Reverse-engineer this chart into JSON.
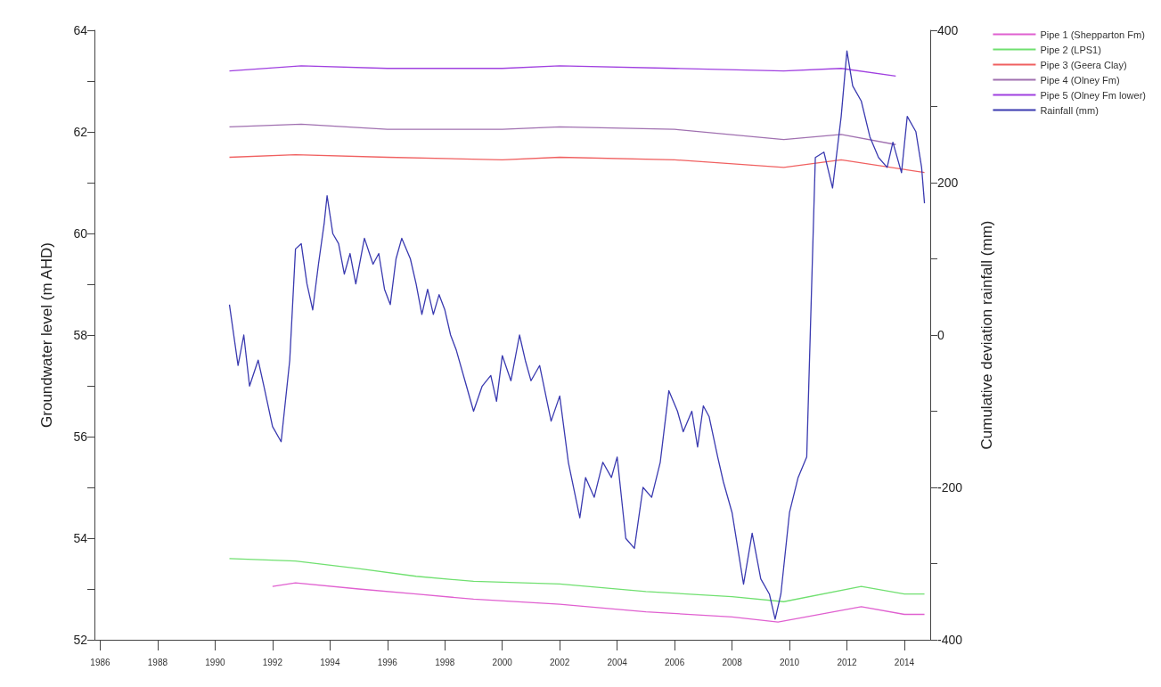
{
  "chart_data": {
    "type": "line",
    "xlabel": null,
    "ylabel": "Groundwater level (m AHD)",
    "y2label": "Cumulative deviation rainfall (mm)",
    "xlim": [
      1985.8,
      2014.9
    ],
    "xticks": [
      1986,
      1988,
      1990,
      1992,
      1994,
      1996,
      1998,
      2000,
      2002,
      2004,
      2006,
      2008,
      2010,
      2012,
      2014
    ],
    "ylim": [
      52,
      64
    ],
    "yticks": [
      52,
      {
        "value": 53,
        "label": null
      },
      54,
      {
        "value": 55,
        "label": null
      },
      56,
      {
        "value": 57,
        "label": null
      },
      58,
      {
        "value": 59,
        "label": null
      },
      60,
      {
        "value": 61,
        "label": null
      },
      62,
      {
        "value": 63,
        "label": null
      },
      64
    ],
    "y2lim": [
      -400,
      400
    ],
    "y2ticks": [
      -400,
      {
        "value": -300,
        "label": null
      },
      -200,
      {
        "value": -100,
        "label": null
      },
      0,
      {
        "value": 100,
        "label": null
      },
      200,
      {
        "value": 300,
        "label": null
      },
      400
    ],
    "grid": false,
    "legend": "top right",
    "marker": "none",
    "line_style": "solid",
    "series": [
      {
        "name": "Pipe 1 (Shepparton Fm)",
        "color": "#e060d0",
        "x": [
          1992,
          1992.8,
          1995,
          1997,
          1999,
          2002,
          2005,
          2008,
          2009.6,
          2012.5,
          2014,
          2014.7
        ],
        "values": [
          53.05,
          53.12,
          53.0,
          52.9,
          52.8,
          52.7,
          52.55,
          52.45,
          52.35,
          52.65,
          52.5,
          52.5
        ]
      },
      {
        "name": "Pipe 2 (LPS1)",
        "color": "#70e070",
        "x": [
          1990.5,
          1992.8,
          1995,
          1997,
          1999,
          2002,
          2005,
          2008,
          2009.8,
          2012.5,
          2014,
          2014.7
        ],
        "values": [
          53.6,
          53.55,
          53.4,
          53.25,
          53.15,
          53.1,
          52.95,
          52.85,
          52.75,
          53.05,
          52.9,
          52.9
        ]
      },
      {
        "name": "Pipe 3 (Geera Clay)",
        "color": "#f06060",
        "x": [
          1990.5,
          1992.8,
          1996,
          2000,
          2002,
          2006,
          2009.8,
          2011.8,
          2014.7
        ],
        "values": [
          61.5,
          61.55,
          61.5,
          61.45,
          61.5,
          61.45,
          61.3,
          61.45,
          61.2
        ]
      },
      {
        "name": "Pipe 4 (Olney Fm)",
        "color": "#a070b0",
        "x": [
          1990.5,
          1993,
          1996,
          2000,
          2002,
          2006,
          2009.8,
          2011.8,
          2013.7
        ],
        "values": [
          62.1,
          62.15,
          62.05,
          62.05,
          62.1,
          62.05,
          61.85,
          61.95,
          61.75
        ]
      },
      {
        "name": "Pipe 5 (Olney Fm lower)",
        "color": "#a040e0",
        "x": [
          1990.5,
          1993,
          1996,
          2000,
          2002,
          2006,
          2009.8,
          2011.8,
          2013.7
        ],
        "values": [
          63.2,
          63.3,
          63.25,
          63.25,
          63.3,
          63.25,
          63.2,
          63.25,
          63.1
        ]
      },
      {
        "name": "Rainfall (mm)",
        "color": "#3a3ab0",
        "axis": "y2",
        "x": [
          1990.5,
          1990.8,
          1991.0,
          1991.2,
          1991.5,
          1991.7,
          1992.0,
          1992.3,
          1992.6,
          1992.8,
          1993.0,
          1993.2,
          1993.4,
          1993.6,
          1993.8,
          1993.9,
          1994.1,
          1994.3,
          1994.5,
          1994.7,
          1994.9,
          1995.2,
          1995.5,
          1995.7,
          1995.9,
          1996.1,
          1996.3,
          1996.5,
          1996.8,
          1997.0,
          1997.2,
          1997.4,
          1997.6,
          1997.8,
          1998.0,
          1998.2,
          1998.4,
          1998.7,
          1999.0,
          1999.3,
          1999.6,
          1999.8,
          2000.0,
          2000.3,
          2000.6,
          2000.8,
          2001.0,
          2001.3,
          2001.7,
          2002.0,
          2002.3,
          2002.7,
          2002.9,
          2003.2,
          2003.5,
          2003.8,
          2004.0,
          2004.3,
          2004.6,
          2004.9,
          2005.2,
          2005.5,
          2005.8,
          2006.1,
          2006.3,
          2006.6,
          2006.8,
          2007.0,
          2007.2,
          2007.5,
          2007.7,
          2008.0,
          2008.4,
          2008.7,
          2009.0,
          2009.3,
          2009.5,
          2009.7,
          2010.0,
          2010.3,
          2010.6,
          2010.9,
          2011.2,
          2011.5,
          2011.8,
          2012.0,
          2012.2,
          2012.5,
          2012.8,
          2013.1,
          2013.4,
          2013.6,
          2013.9,
          2014.1,
          2014.4,
          2014.6,
          2014.7
        ],
        "values": [
          40,
          -40,
          0,
          -67,
          -33,
          -67,
          -120,
          -140,
          -33,
          113,
          120,
          67,
          33,
          93,
          147,
          183,
          133,
          120,
          80,
          107,
          67,
          127,
          93,
          107,
          60,
          40,
          100,
          127,
          100,
          67,
          27,
          60,
          27,
          53,
          33,
          0,
          -20,
          -60,
          -100,
          -67,
          -53,
          -87,
          -27,
          -60,
          0,
          -33,
          -60,
          -40,
          -113,
          -80,
          -167,
          -240,
          -187,
          -213,
          -167,
          -187,
          -160,
          -267,
          -280,
          -200,
          -213,
          -167,
          -73,
          -100,
          -127,
          -100,
          -147,
          -93,
          -107,
          -160,
          -193,
          -233,
          -327,
          -260,
          -320,
          -340,
          -373,
          -340,
          -233,
          -187,
          -160,
          233,
          240,
          193,
          287,
          373,
          327,
          307,
          260,
          233,
          220,
          253,
          213,
          287,
          267,
          220,
          173
        ]
      }
    ]
  }
}
